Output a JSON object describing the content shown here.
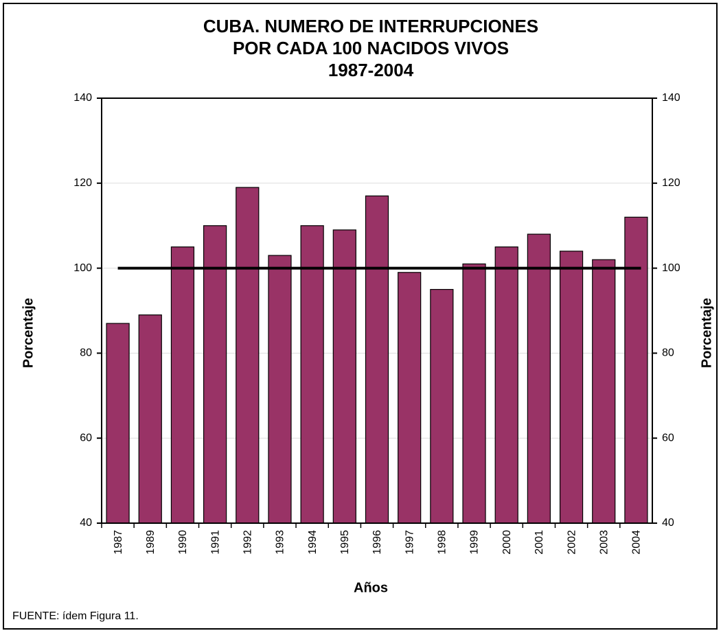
{
  "chart_data": {
    "type": "bar",
    "title": [
      "CUBA. NUMERO DE INTERRUPCIONES",
      "POR CADA 100 NACIDOS VIVOS",
      "1987-2004"
    ],
    "y_label": "Porcentaje",
    "y2_label": "Porcentaje",
    "x_label": "Años",
    "note": "FUENTE: ídem Figura 11.",
    "categories": [
      "1987",
      "1989",
      "1990",
      "1991",
      "1992",
      "1993",
      "1994",
      "1995",
      "1996",
      "1997",
      "1998",
      "1999",
      "2000",
      "2001",
      "2002",
      "2003",
      "2004"
    ],
    "values": [
      87,
      89,
      105,
      110,
      119,
      103,
      110,
      109,
      117,
      99,
      95,
      101,
      105,
      108,
      104,
      102,
      112
    ],
    "color": "#993366",
    "ylim": [
      40,
      140
    ],
    "yticks": [
      40,
      60,
      80,
      100,
      120,
      140
    ],
    "y2lim": [
      40,
      140
    ],
    "y2ticks": [
      40,
      60,
      80,
      100,
      120,
      140
    ],
    "reference_line": 100,
    "grid": true
  }
}
